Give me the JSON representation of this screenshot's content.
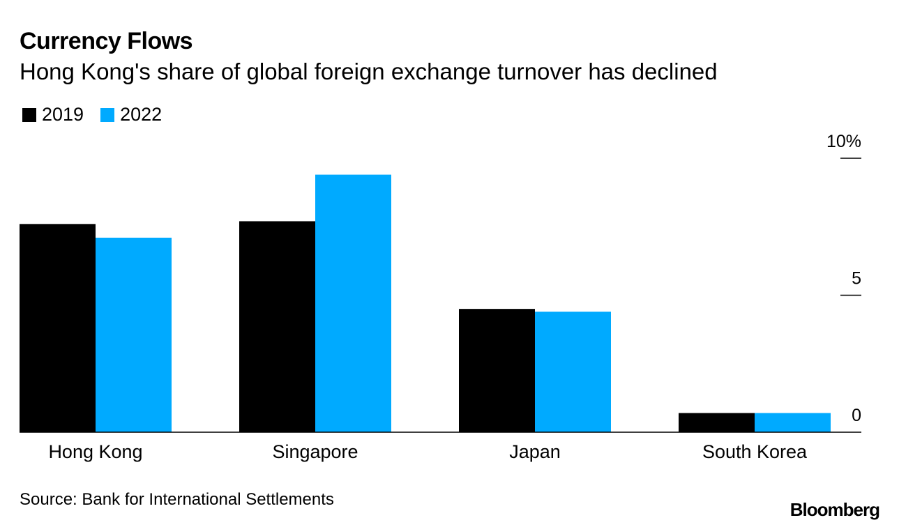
{
  "header": {
    "title": "Currency Flows",
    "subtitle": "Hong Kong's share of global foreign exchange turnover has declined"
  },
  "colors": {
    "series_2019": "#000000",
    "series_2022": "#00aaff",
    "axis": "#000000",
    "text": "#000000"
  },
  "chart_data": {
    "type": "bar",
    "title": "Currency Flows",
    "subtitle": "Hong Kong's share of global foreign exchange turnover has declined",
    "categories": [
      "Hong Kong",
      "Singapore",
      "Japan",
      "South Korea"
    ],
    "series": [
      {
        "name": "2019",
        "color": "#000000",
        "values": [
          7.6,
          7.7,
          4.5,
          0.7
        ]
      },
      {
        "name": "2022",
        "color": "#00aaff",
        "values": [
          7.1,
          9.4,
          4.4,
          0.7
        ]
      }
    ],
    "ylim": [
      0,
      10
    ],
    "yticks": [
      0,
      5,
      10
    ],
    "ytick_labels": [
      "0",
      "5",
      "10%"
    ],
    "xlabel": "",
    "ylabel": "",
    "grid": false,
    "legend_position": "top-left",
    "y_axis_side": "right"
  },
  "footer": {
    "source": "Source: Bank for International Settlements",
    "brand": "Bloomberg"
  }
}
